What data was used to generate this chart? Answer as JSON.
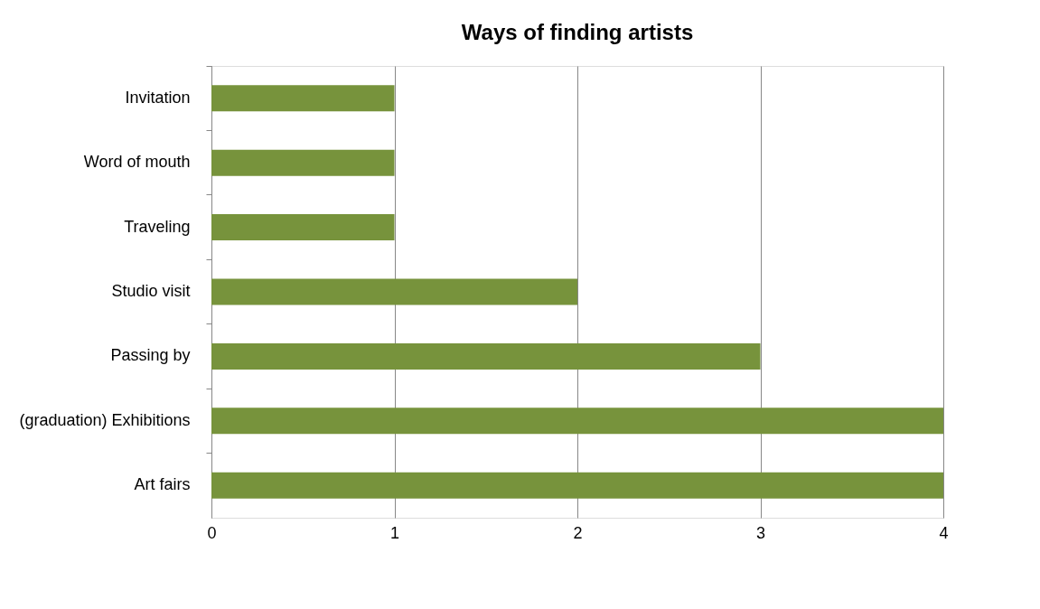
{
  "chart_data": {
    "type": "bar",
    "title": "Ways of finding artists",
    "orientation": "horizontal",
    "categories": [
      "Invitation",
      "Word of mouth",
      "Traveling",
      "Studio visit",
      "Passing by",
      "(graduation) Exhibitions",
      "Art fairs"
    ],
    "values": [
      1,
      1,
      1,
      2,
      3,
      4,
      4
    ],
    "color": "#77933c",
    "xlim": [
      0,
      4
    ],
    "xticks": [
      0,
      1,
      2,
      3,
      4
    ],
    "grid": "x"
  }
}
